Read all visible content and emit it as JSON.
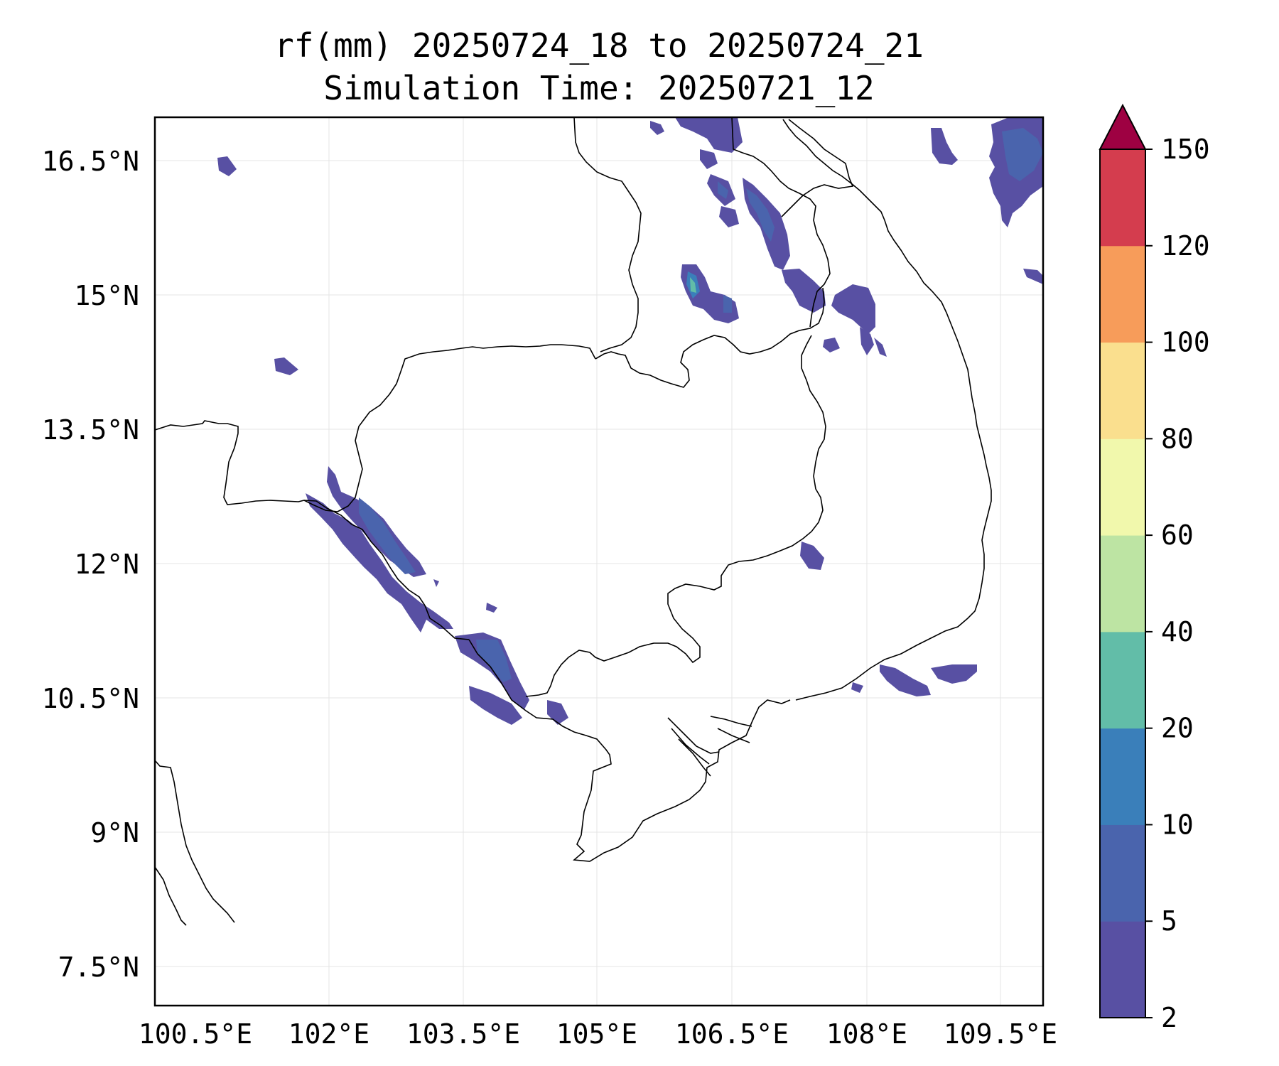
{
  "title": {
    "line1": "rf(mm) 20250724_18 to 20250724_21",
    "line2": "Simulation Time: 20250721_12"
  },
  "map": {
    "lat_ticks": [
      "16.5°N",
      "15°N",
      "13.5°N",
      "12°N",
      "10.5°N",
      "9°N",
      "7.5°N"
    ],
    "lon_ticks": [
      "100.5°E",
      "102°E",
      "103.5°E",
      "105°E",
      "106.5°E",
      "108°E",
      "109.5°E"
    ],
    "extent": {
      "lon_min": 100.5,
      "lon_max": 110.4,
      "lat_min": 7.0,
      "lat_max": 16.9
    },
    "gridlines": true
  },
  "colorbar": {
    "levels": [
      "2",
      "5",
      "10",
      "20",
      "40",
      "60",
      "80",
      "100",
      "120",
      "150"
    ],
    "colors": [
      "#5850a3",
      "#4a64ad",
      "#3a7fba",
      "#62bda8",
      "#bde4a3",
      "#f1f8ac",
      "#fadf8e",
      "#f79c5a",
      "#d43d4e",
      "#9e0142"
    ],
    "extend": "max"
  }
}
